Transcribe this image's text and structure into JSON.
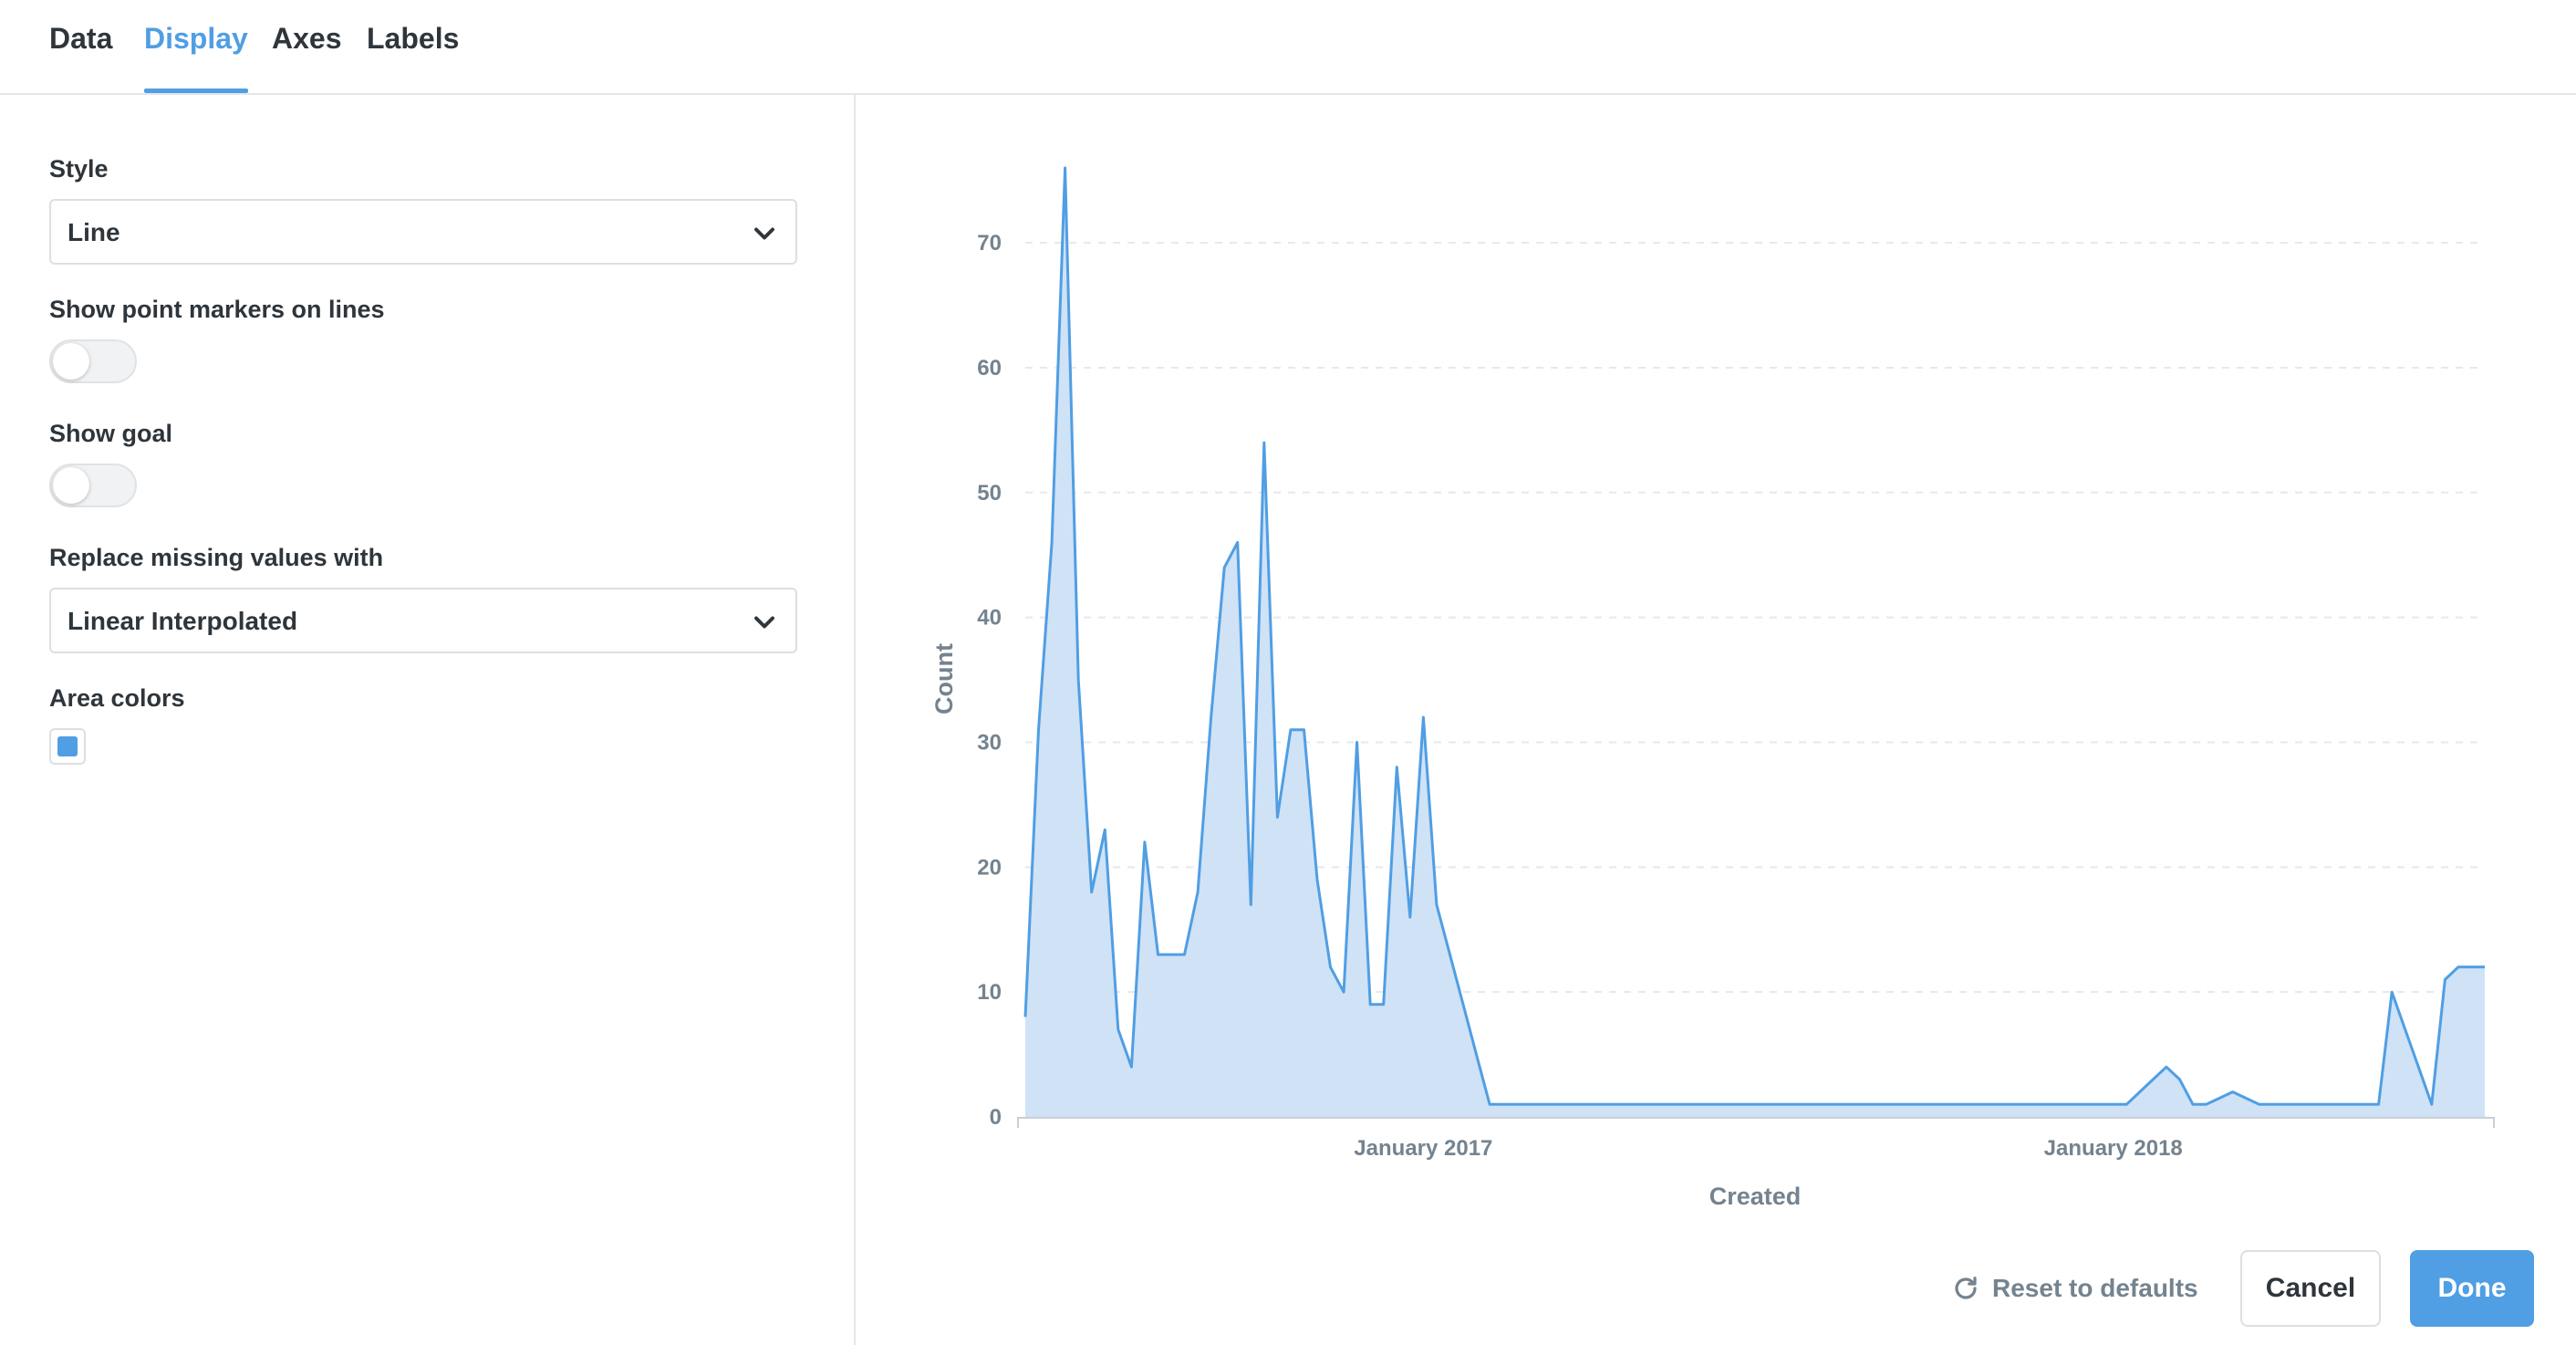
{
  "tabs": [
    {
      "label": "Data",
      "active": false
    },
    {
      "label": "Display",
      "active": true
    },
    {
      "label": "Axes",
      "active": false
    },
    {
      "label": "Labels",
      "active": false
    }
  ],
  "settings": {
    "style": {
      "label": "Style",
      "value": "Line"
    },
    "point_markers": {
      "label": "Show point markers on lines",
      "enabled": false
    },
    "goal": {
      "label": "Show goal",
      "enabled": false
    },
    "missing_values": {
      "label": "Replace missing values with",
      "value": "Linear Interpolated"
    },
    "area_colors": {
      "label": "Area colors",
      "color": "#509ee3"
    }
  },
  "footer": {
    "reset_label": "Reset to defaults",
    "cancel_label": "Cancel",
    "done_label": "Done"
  },
  "icons": {
    "chevron": "chevron-down-icon",
    "reset": "refresh-icon"
  },
  "colors": {
    "brand": "#509ee3",
    "area_fill": "#cfe2f6",
    "line": "#509ee3"
  },
  "chart_data": {
    "type": "area",
    "title": "",
    "xlabel": "Created",
    "ylabel": "Count",
    "ylim": [
      0,
      76
    ],
    "yticks": [
      0,
      10,
      20,
      30,
      40,
      50,
      60,
      70
    ],
    "xticks": [
      {
        "label": "January 2017",
        "x": 30
      },
      {
        "label": "January 2018",
        "x": 82
      }
    ],
    "grid": true,
    "legend": "none",
    "series": [
      {
        "x": [
          0,
          1,
          2,
          3,
          4,
          5,
          6,
          7,
          8,
          9,
          10,
          11,
          12,
          13,
          14,
          15,
          16,
          17,
          18,
          19,
          20,
          21,
          22,
          23,
          24,
          25,
          26,
          27,
          28,
          29,
          30,
          31,
          32,
          33,
          34,
          35,
          36,
          37,
          38,
          39,
          40,
          41,
          42,
          43,
          44,
          45,
          46,
          47,
          48,
          49,
          50,
          51,
          52,
          53,
          54,
          55,
          56,
          57,
          58,
          59,
          60,
          61,
          62,
          63,
          64,
          65,
          66,
          67,
          68,
          69,
          70,
          71,
          72,
          73,
          74,
          75,
          76,
          77,
          78,
          79,
          80,
          81,
          82,
          83,
          84,
          85,
          86,
          87,
          88,
          89,
          90,
          91,
          92,
          93,
          94,
          95,
          96,
          97,
          98,
          99,
          100,
          101,
          102,
          103,
          104,
          105,
          106,
          107,
          108,
          109,
          110
        ],
        "values": [
          8,
          31,
          46,
          76,
          35,
          18,
          23,
          7,
          4,
          22,
          13,
          13,
          13,
          18,
          32,
          44,
          46,
          17,
          54,
          24,
          31,
          31,
          19,
          12,
          10,
          30,
          9,
          9,
          28,
          16,
          32,
          17,
          13,
          9,
          5,
          1,
          1,
          1,
          1,
          1,
          1,
          1,
          1,
          1,
          1,
          1,
          1,
          1,
          1,
          1,
          1,
          1,
          1,
          1,
          1,
          1,
          1,
          1,
          1,
          1,
          1,
          1,
          1,
          1,
          1,
          1,
          1,
          1,
          1,
          1,
          1,
          1,
          1,
          1,
          1,
          1,
          1,
          1,
          1,
          1,
          1,
          1,
          1,
          1,
          2,
          3,
          4,
          3,
          1,
          1,
          1.5,
          2,
          1.5,
          1,
          1,
          1,
          1,
          1,
          1,
          1,
          1,
          1,
          1,
          10,
          7,
          4,
          1,
          11,
          12,
          12,
          12
        ]
      }
    ]
  }
}
